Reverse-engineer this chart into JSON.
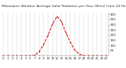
{
  "title": "Milwaukee Weather Average Solar Radiation per Hour W/m2 (Last 24 Hours)",
  "hours": [
    0,
    1,
    2,
    3,
    4,
    5,
    6,
    7,
    8,
    9,
    10,
    11,
    12,
    13,
    14,
    15,
    16,
    17,
    18,
    19,
    20,
    21,
    22,
    23
  ],
  "values": [
    0,
    0,
    0,
    0,
    0,
    0,
    0,
    5,
    40,
    110,
    200,
    310,
    380,
    330,
    220,
    130,
    55,
    15,
    2,
    0,
    0,
    0,
    0,
    0
  ],
  "line_color": "#cc0000",
  "bg_color": "#ffffff",
  "grid_color": "#aaaaaa",
  "ylim": [
    0,
    420
  ],
  "ytick_values": [
    50,
    100,
    150,
    200,
    250,
    300,
    350,
    400
  ],
  "ytick_labels": [
    "50",
    "100",
    "150",
    "200",
    "250",
    "300",
    "350",
    "400"
  ],
  "title_fontsize": 3.2,
  "tick_fontsize": 3.0
}
